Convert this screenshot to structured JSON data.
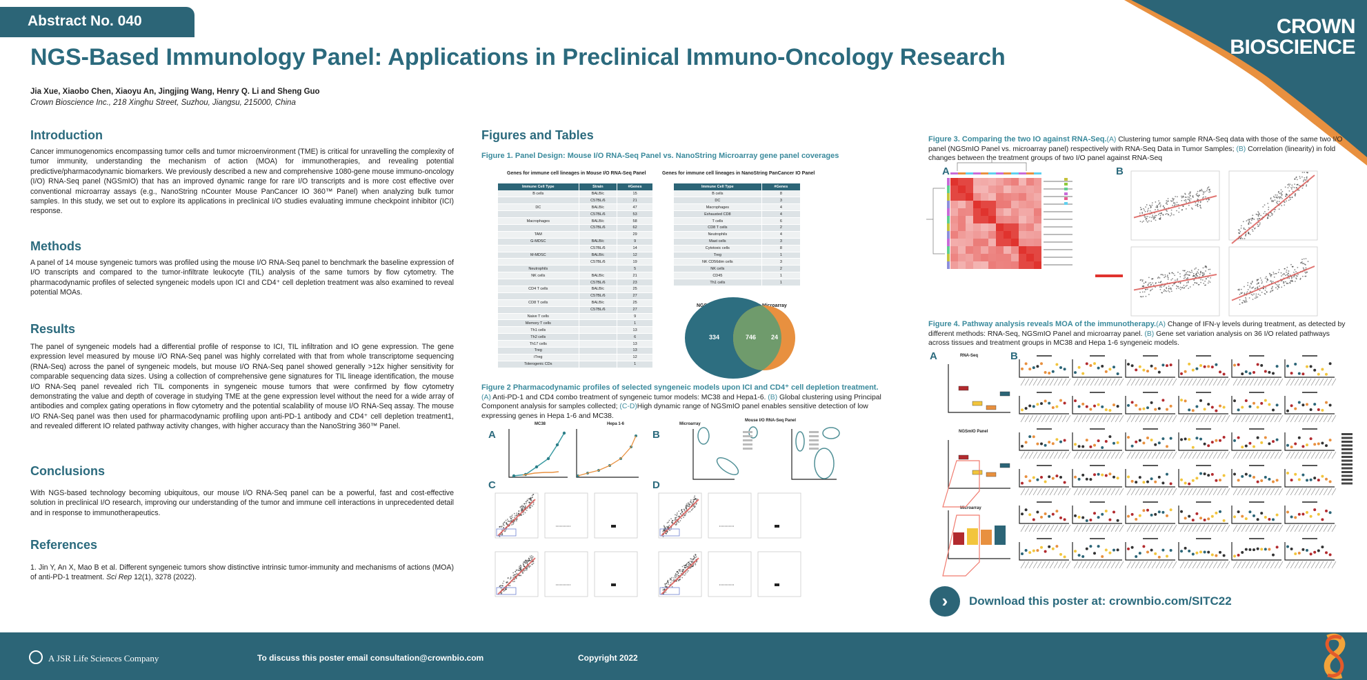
{
  "header": {
    "abstract": "Abstract No. 040",
    "title": "NGS-Based Immunology Panel: Applications in Preclinical Immuno-Oncology Research",
    "authors": "Jia Xue, Xiaobo Chen, Xiaoyu An, Jingjing Wang, Henry Q. Li and Sheng Guo",
    "affiliation": "Crown Bioscience Inc., 218 Xinghu Street, Suzhou, Jiangsu, 215000, China",
    "logo": "CROWN BIOSCIENCE"
  },
  "sections": {
    "intro_title": "Introduction",
    "intro": "Cancer immunogenomics encompassing tumor cells and tumor microenvironment (TME) is critical for unravelling the complexity of tumor immunity, understanding the mechanism of action (MOA) for immunotherapies, and revealing potential predictive/pharmacodynamic biomarkers. We previously described a new and comprehensive 1080-gene mouse immuno-oncology (I/O) RNA-Seq panel (NGSmIO) that has an improved dynamic range for rare I/O transcripts and is more cost effective over conventional microarray assays (e.g., NanoString nCounter Mouse PanCancer IO 360™ Panel) when analyzing bulk tumor samples. In this study, we set out to explore its applications in preclinical I/O studies evaluating immune checkpoint inhibitor (ICI) response.",
    "methods_title": "Methods",
    "methods": "A panel of 14 mouse syngeneic tumors was profiled using the mouse I/O RNA-Seq panel to benchmark the baseline expression of I/O transcripts and compared to the tumor-infiltrate leukocyte (TIL) analysis of the same tumors by flow cytometry. The pharmacodynamic profiles of selected syngeneic models upon ICI and CD4⁺ cell depletion treatment was also examined to reveal potential MOAs.",
    "results_title": "Results",
    "results": "The panel of syngeneic models had a differential profile of response to ICI, TIL infiltration and IO gene expression. The gene expression level measured by mouse I/O RNA-Seq panel was highly correlated with that from whole transcriptome sequencing (RNA-Seq) across the panel of syngeneic models, but mouse I/O RNA-Seq panel showed generally >12x higher sensitivity for comparable sequencing data sizes. Using a collection of comprehensive gene signatures for TIL lineage identification, the mouse I/O RNA-Seq panel revealed rich TIL components in syngeneic mouse tumors that were confirmed by flow cytometry demonstrating the value and depth of coverage in studying TME at the gene expression level without the need for a wide array of antibodies and complex gating operations in flow cytometry and the potential scalability of mouse I/O RNA-Seq assay. The mouse I/O RNA-Seq panel was then used for pharmacodynamic profiling upon anti-PD-1 antibody and CD4⁺ cell depletion treatment1, and revealed different IO related pathway activity changes, with higher accuracy than the NanoString 360™ Panel.",
    "conclusions_title": "Conclusions",
    "conclusions": "With NGS-based technology becoming ubiquitous, our mouse I/O RNA-Seq panel can be a powerful, fast and cost-effective solution in preclinical I/O research, improving our understanding of the tumor and immune cell interactions in unprecedented detail and in response to immunotherapeutics.",
    "references_title": "References",
    "ref_main": "1. Jin Y, An X, Mao B et al. Different syngeneic tumors show distinctive intrinsic tumor-immunity and mechanisms of actions (MOA) of anti-PD-1 treatment. ",
    "ref_journal": "Sci Rep",
    "ref_tail": " 12(1), 3278 (2022)."
  },
  "figures": {
    "title": "Figures and Tables",
    "fig1": {
      "caption": "Figure 1. Panel Design: Mouse I/O RNA-Seq Panel vs. NanoString Microarray gene panel coverages",
      "left_title": "Genes for immune cell lineages in Mouse I/O RNA-Seq Panel",
      "right_title": "Genes for immune cell lineages in NanoString PanCancer IO Panel",
      "left_headers": [
        "Immune Cell Type",
        "Strain",
        "#Genes"
      ],
      "right_headers": [
        "Immune Cell Type",
        "#Genes"
      ],
      "left_rows": [
        [
          "B cells",
          "BALB/c",
          "15"
        ],
        [
          "",
          "C57BL/6",
          "21"
        ],
        [
          "DC",
          "BALB/c",
          "47"
        ],
        [
          "",
          "C57BL/6",
          "53"
        ],
        [
          "Macrophages",
          "BALB/c",
          "58"
        ],
        [
          "",
          "C57BL/6",
          "62"
        ],
        [
          "TAM",
          "",
          "29"
        ],
        [
          "G-MDSC",
          "BALB/c",
          "9"
        ],
        [
          "",
          "C57BL/6",
          "14"
        ],
        [
          "M-MDSC",
          "BALB/c",
          "12"
        ],
        [
          "",
          "C57BL/6",
          "19"
        ],
        [
          "Neutrophils",
          "",
          "5"
        ],
        [
          "NK cells",
          "BALB/c",
          "21"
        ],
        [
          "",
          "C57BL/6",
          "23"
        ],
        [
          "CD4 T cells",
          "BALB/c",
          "25"
        ],
        [
          "",
          "C57BL/6",
          "27"
        ],
        [
          "CD8 T cells",
          "BALB/c",
          "25"
        ],
        [
          "",
          "C57BL/6",
          "27"
        ],
        [
          "Naive T cells",
          "",
          "9"
        ],
        [
          "Memory T cells",
          "",
          "1"
        ],
        [
          "Th1 cells",
          "",
          "13"
        ],
        [
          "Th2 cells",
          "",
          "6"
        ],
        [
          "Th17 cells",
          "",
          "13"
        ],
        [
          "Treg",
          "",
          "13"
        ],
        [
          "iTreg",
          "",
          "12"
        ],
        [
          "Tolerogenic CDs",
          "",
          "1"
        ]
      ],
      "right_rows": [
        [
          "B cells",
          "8"
        ],
        [
          "DC",
          "3"
        ],
        [
          "Macrophages",
          "4"
        ],
        [
          "Exhausted CD8",
          "4"
        ],
        [
          "T cells",
          "6"
        ],
        [
          "CD8 T cells",
          "2"
        ],
        [
          "Neutrophils",
          "4"
        ],
        [
          "Mast cells",
          "3"
        ],
        [
          "Cytotoxic cells",
          "8"
        ],
        [
          "Treg",
          "1"
        ],
        [
          "NK CD56dim cells",
          "3"
        ],
        [
          "NK cells",
          "2"
        ],
        [
          "CD45",
          "1"
        ],
        [
          "Th1 cells",
          "1"
        ]
      ],
      "venn": {
        "left_label": "NGSmIO Panel",
        "right_label": "Microarray",
        "left_only": "334",
        "overlap": "746",
        "right_only": "24"
      }
    },
    "fig2": {
      "title": "Figure 2 Pharmacodynamic profiles of selected syngeneic models upon ICI and CD4⁺ cell depletion treatment.",
      "a": "(A)",
      "a_text": " Anti-PD-1 and CD4 combo treatment of syngeneic tumor models: MC38 and Hepa1-6. ",
      "b": "(B)",
      "b_text": " Global clustering using Principal Component analysis for samples collected; ",
      "cd": "(C-D)",
      "cd_text": "High dynamic range of NGSmIO panel enables sensitive detection of low expressing genes in Hepa 1-6 and MC38.",
      "plot1": "MC38",
      "plot2": "Hepa 1-6",
      "pca1": "Microarray",
      "pca2": "Mouse I/O RNA-Seq Panel"
    },
    "fig3": {
      "title": "Figure 3. Comparing the two IO against RNA-Seq.",
      "a": "(A)",
      "a_text": " Clustering tumor sample RNA-Seq data with those of the same two I/O panel (NGSmIO Panel vs. microarray panel) respectively with RNA-Seq Data in Tumor Samples; ",
      "b": "(B)",
      "b_text": " Correlation (linearity) in fold changes between the treatment groups of two I/O panel against RNA-Seq"
    },
    "fig4": {
      "title": "Figure 4. Pathway analysis reveals MOA of the immunotherapy.",
      "a": "(A)",
      "a_text": " Change of IFN-γ levels during treatment, as detected by different methods: RNA-Seq, NGSmIO Panel and microarray panel. ",
      "b": "(B)",
      "b_text": " Gene set variation analysis on 36 I/O related pathways across tissues and treatment groups in MC38 and Hepa 1-6 syngeneic models.",
      "p1": "RNA-Seq",
      "p2": "NGSmIO Panel",
      "p3": "Microarray"
    },
    "letters": {
      "A": "A",
      "B": "B",
      "C": "C",
      "D": "D"
    }
  },
  "download": {
    "text": "Download this poster at: crownbio.com/SITC22"
  },
  "footer": {
    "company": "A JSR Life Sciences Company",
    "email": "To discuss this poster email consultation@crownbio.com",
    "copyright": "Copyright 2022"
  },
  "colors": {
    "teal": "#2c6577",
    "heading": "#2b6a7d",
    "orange": "#e8903f",
    "green": "#6f9b6c",
    "red": "#e0332e",
    "yellow": "#f2c53d"
  }
}
